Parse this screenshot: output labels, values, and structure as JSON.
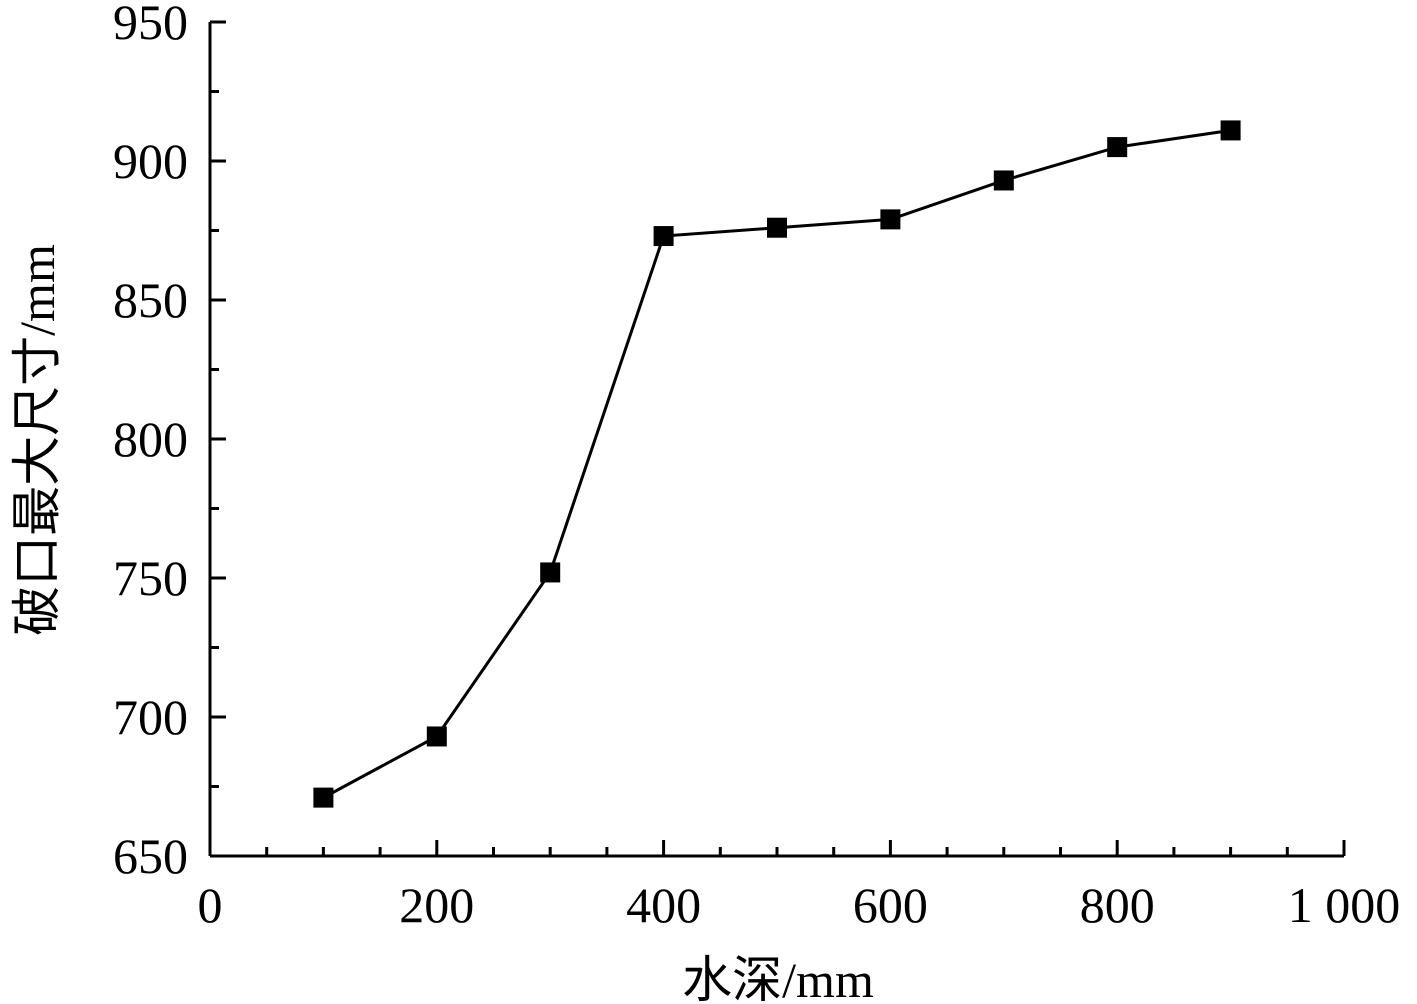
{
  "chart_data": {
    "type": "line",
    "title": "",
    "xlabel": "水深/mm",
    "ylabel": "破口最大尺寸/mm",
    "xlim": [
      0,
      1000
    ],
    "ylim": [
      650,
      950
    ],
    "x_ticks": [
      {
        "value": 0,
        "label": "0"
      },
      {
        "value": 200,
        "label": "200"
      },
      {
        "value": 400,
        "label": "400"
      },
      {
        "value": 600,
        "label": "600"
      },
      {
        "value": 800,
        "label": "800"
      },
      {
        "value": 1000,
        "label": "1 000"
      }
    ],
    "x_minor_step": 50,
    "y_ticks": [
      {
        "value": 650,
        "label": "650"
      },
      {
        "value": 700,
        "label": "700"
      },
      {
        "value": 750,
        "label": "750"
      },
      {
        "value": 800,
        "label": "800"
      },
      {
        "value": 850,
        "label": "850"
      },
      {
        "value": 900,
        "label": "900"
      },
      {
        "value": 950,
        "label": "950"
      }
    ],
    "y_minor_step": 25,
    "grid": false,
    "legend": "none",
    "marker": "filled-square",
    "color": "#000000",
    "series": [
      {
        "x": [
          100,
          200,
          300,
          400,
          500,
          600,
          700,
          800,
          900
        ],
        "values": [
          671,
          693,
          752,
          873,
          876,
          879,
          893,
          905,
          911
        ]
      }
    ]
  }
}
